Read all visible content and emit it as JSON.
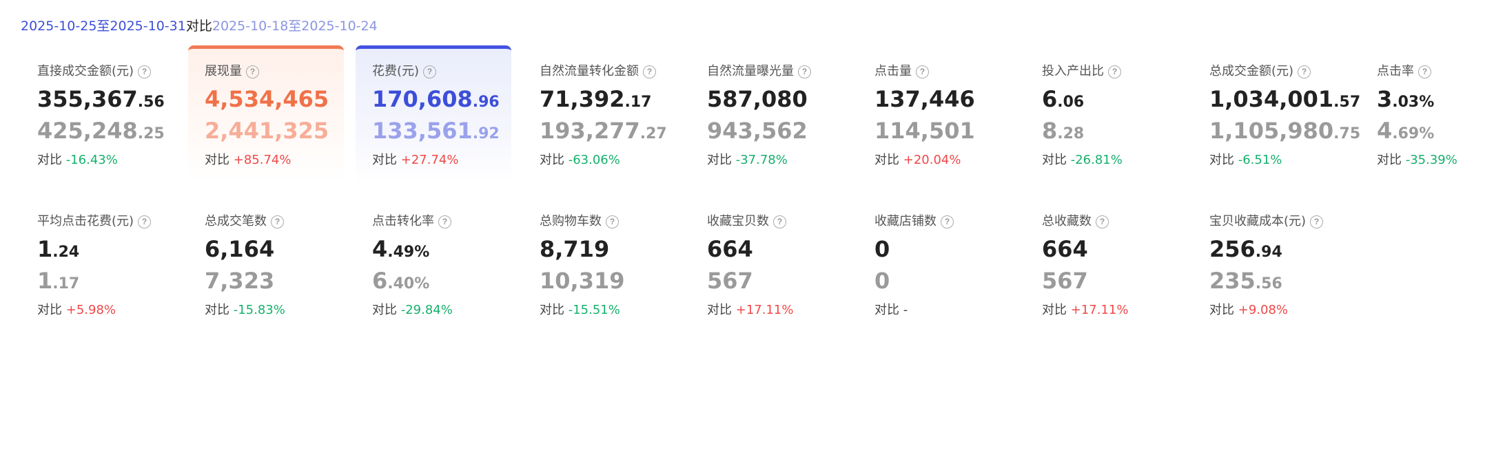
{
  "date_range": {
    "current": "2025-10-25至2025-10-31",
    "vs": "对比",
    "previous": "2025-10-18至2025-10-24"
  },
  "cmp_prefix": "对比",
  "help_glyph": "?",
  "metrics": [
    {
      "label": "直接成交金额(元)",
      "int": "355,367",
      "dec": ".56",
      "prev_int": "425,248",
      "prev_dec": ".25",
      "change": "-16.43%",
      "trend": "down"
    },
    {
      "label": "展现量",
      "int": "4,534,465",
      "dec": "",
      "prev_int": "2,441,325",
      "prev_dec": "",
      "change": "+85.74%",
      "trend": "up",
      "selected": "orange"
    },
    {
      "label": "花费(元)",
      "int": "170,608",
      "dec": ".96",
      "prev_int": "133,561",
      "prev_dec": ".92",
      "change": "+27.74%",
      "trend": "up",
      "selected": "blue"
    },
    {
      "label": "自然流量转化金额",
      "int": "71,392",
      "dec": ".17",
      "prev_int": "193,277",
      "prev_dec": ".27",
      "change": "-63.06%",
      "trend": "down"
    },
    {
      "label": "自然流量曝光量",
      "int": "587,080",
      "dec": "",
      "prev_int": "943,562",
      "prev_dec": "",
      "change": "-37.78%",
      "trend": "down"
    },
    {
      "label": "点击量",
      "int": "137,446",
      "dec": "",
      "prev_int": "114,501",
      "prev_dec": "",
      "change": "+20.04%",
      "trend": "up"
    },
    {
      "label": "投入产出比",
      "int": "6",
      "dec": ".06",
      "prev_int": "8",
      "prev_dec": ".28",
      "change": "-26.81%",
      "trend": "down"
    },
    {
      "label": "总成交金额(元)",
      "int": "1,034,001",
      "dec": ".57",
      "prev_int": "1,105,980",
      "prev_dec": ".75",
      "change": "-6.51%",
      "trend": "down"
    },
    {
      "label": "点击率",
      "int": "3",
      "dec": ".03%",
      "prev_int": "4",
      "prev_dec": ".69%",
      "change": "-35.39%",
      "trend": "down"
    },
    {
      "label": "平均点击花费(元)",
      "int": "1",
      "dec": ".24",
      "prev_int": "1",
      "prev_dec": ".17",
      "change": "+5.98%",
      "trend": "up"
    },
    {
      "label": "总成交笔数",
      "int": "6,164",
      "dec": "",
      "prev_int": "7,323",
      "prev_dec": "",
      "change": "-15.83%",
      "trend": "down"
    },
    {
      "label": "点击转化率",
      "int": "4",
      "dec": ".49%",
      "prev_int": "6",
      "prev_dec": ".40%",
      "change": "-29.84%",
      "trend": "down"
    },
    {
      "label": "总购物车数",
      "int": "8,719",
      "dec": "",
      "prev_int": "10,319",
      "prev_dec": "",
      "change": "-15.51%",
      "trend": "down"
    },
    {
      "label": "收藏宝贝数",
      "int": "664",
      "dec": "",
      "prev_int": "567",
      "prev_dec": "",
      "change": "+17.11%",
      "trend": "up"
    },
    {
      "label": "收藏店铺数",
      "int": "0",
      "dec": "",
      "prev_int": "0",
      "prev_dec": "",
      "change": "-",
      "trend": "neutral"
    },
    {
      "label": "总收藏数",
      "int": "664",
      "dec": "",
      "prev_int": "567",
      "prev_dec": "",
      "change": "+17.11%",
      "trend": "up"
    },
    {
      "label": "宝贝收藏成本(元)",
      "int": "256",
      "dec": ".94",
      "prev_int": "235",
      "prev_dec": ".56",
      "change": "+9.08%",
      "trend": "up"
    }
  ],
  "colors": {
    "accent_blue": "#3d4fd8",
    "accent_orange": "#f07148",
    "up": "#f04848",
    "down": "#15b06c"
  }
}
